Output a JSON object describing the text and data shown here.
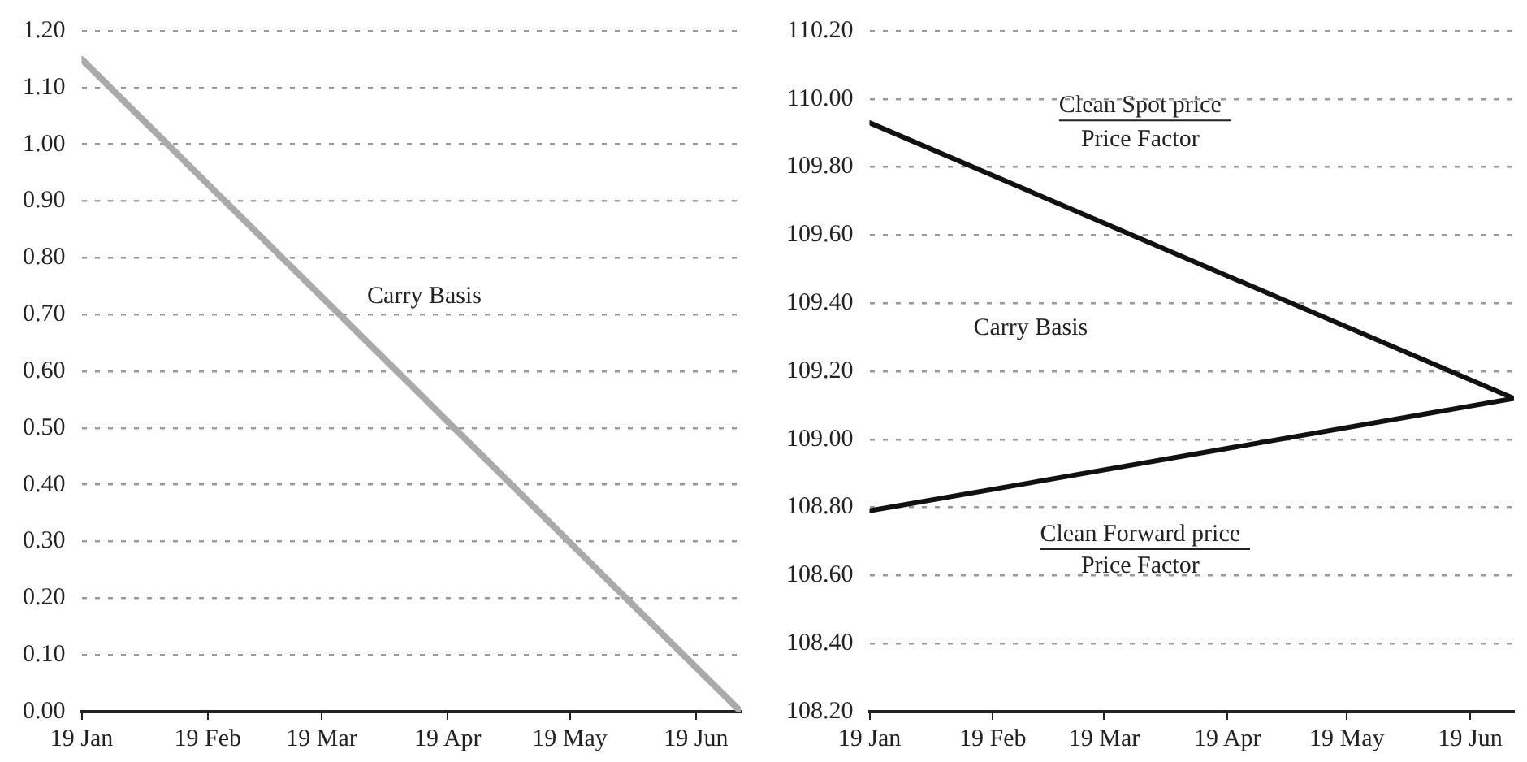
{
  "chart_data": [
    {
      "type": "line",
      "x": [
        "--01-19",
        "--06-30"
      ],
      "series": [
        {
          "color": "#aaaaaa",
          "values": [
            1.15,
            0.0
          ]
        }
      ],
      "xlim": [
        "--01-19",
        "--06-30"
      ],
      "xticks": [
        {
          "value": "--01-19",
          "label": "19 Jan"
        },
        {
          "value": "--02-19",
          "label": "19 Feb"
        },
        {
          "value": "--03-19",
          "label": "19 Mar"
        },
        {
          "value": "--04-19",
          "label": "19 Apr"
        },
        {
          "value": "--05-19",
          "label": "19 May"
        },
        {
          "value": "--06-19",
          "label": "19 Jun"
        }
      ],
      "ylim": [
        0,
        1.2
      ],
      "yticks": [
        {
          "value": 0,
          "label": "0.00"
        },
        {
          "value": 0.1,
          "label": "0.10"
        },
        {
          "value": 0.2,
          "label": "0.20"
        },
        {
          "value": 0.3,
          "label": "0.30"
        },
        {
          "value": 0.4,
          "label": "0.40"
        },
        {
          "value": 0.5,
          "label": "0.50"
        },
        {
          "value": 0.6,
          "label": "0.60"
        },
        {
          "value": 0.7,
          "label": "0.70"
        },
        {
          "value": 0.8,
          "label": "0.80"
        },
        {
          "value": 0.9,
          "label": "0.90"
        },
        {
          "value": 1.0,
          "label": "1.00"
        },
        {
          "value": 1.1,
          "label": "1.10"
        },
        {
          "value": 1.2,
          "label": "1.20"
        }
      ],
      "grid": "y",
      "legend": false,
      "marker": "none",
      "line_style": "solid",
      "annotations": [
        "Carry Basis"
      ]
    },
    {
      "type": "line",
      "x": [
        "--01-19",
        "--06-30"
      ],
      "series": [
        {
          "color": "#111111",
          "values": [
            109.93,
            109.12
          ]
        },
        {
          "color": "#111111",
          "values": [
            108.79,
            109.12
          ]
        }
      ],
      "xlim": [
        "--01-19",
        "--06-30"
      ],
      "xticks": [
        {
          "value": "--01-19",
          "label": "19 Jan"
        },
        {
          "value": "--02-19",
          "label": "19 Feb"
        },
        {
          "value": "--03-19",
          "label": "19 Mar"
        },
        {
          "value": "--04-19",
          "label": "19 Apr"
        },
        {
          "value": "--05-19",
          "label": "19 May"
        },
        {
          "value": "--06-19",
          "label": "19 Jun"
        }
      ],
      "ylim": [
        108.2,
        110.2
      ],
      "yticks": [
        {
          "value": 108.2,
          "label": "108.20"
        },
        {
          "value": 108.4,
          "label": "108.40"
        },
        {
          "value": 108.6,
          "label": "108.60"
        },
        {
          "value": 108.8,
          "label": "108.80"
        },
        {
          "value": 109.0,
          "label": "109.00"
        },
        {
          "value": 109.2,
          "label": "109.20"
        },
        {
          "value": 109.4,
          "label": "109.40"
        },
        {
          "value": 109.6,
          "label": "109.60"
        },
        {
          "value": 109.8,
          "label": "109.80"
        },
        {
          "value": 110.0,
          "label": "110.00"
        },
        {
          "value": 110.2,
          "label": "110.20"
        }
      ],
      "grid": "y",
      "legend": false,
      "marker": "none",
      "line_style": "solid",
      "annotations": [
        "Clean Spot price",
        "Price Factor",
        "Carry Basis",
        "Clean Forward price",
        "Price Factor"
      ]
    }
  ]
}
